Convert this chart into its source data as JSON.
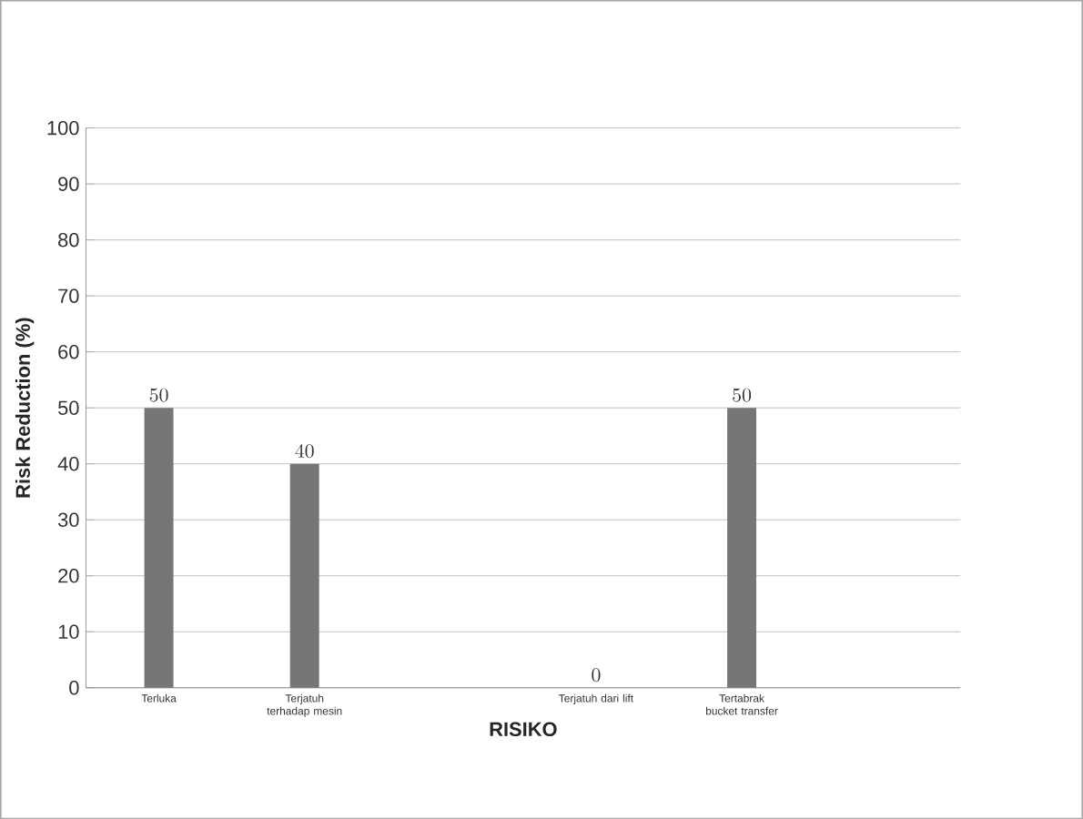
{
  "chart_data": {
    "type": "bar",
    "xlabel": "RISIKO",
    "ylabel": "Risk Reduction (%)",
    "categories": [
      "Terluka",
      "Terjatuh terhadap mesin",
      null,
      "Terjatuh dari lift",
      "Tertabrak bucket transfer",
      null
    ],
    "values": [
      50,
      40,
      null,
      0,
      50,
      null
    ],
    "color": "#767676",
    "ylim": [
      0,
      100
    ],
    "yticks": [
      0,
      10,
      20,
      30,
      40,
      50,
      60,
      70,
      80,
      90,
      100
    ],
    "grid": "y",
    "data_labels": true
  }
}
